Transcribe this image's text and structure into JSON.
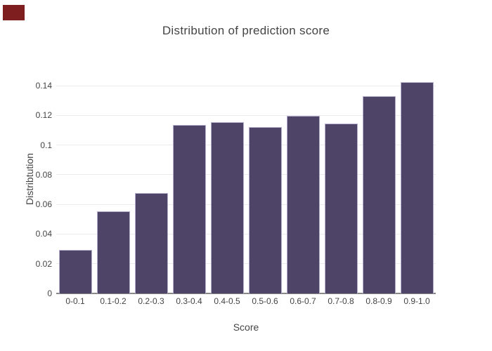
{
  "red_marker": {
    "color": "#7e1e1e"
  },
  "chart_data": {
    "type": "bar",
    "title": "Distribution of prediction score",
    "xlabel": "Score",
    "ylabel": "Distribtution",
    "categories": [
      "0-0.1",
      "0.1-0.2",
      "0.2-0.3",
      "0.3-0.4",
      "0.4-0.5",
      "0.5-0.6",
      "0.6-0.7",
      "0.7-0.8",
      "0.8-0.9",
      "0.9-1.0"
    ],
    "values": [
      0.0295,
      0.0555,
      0.0675,
      0.1135,
      0.1155,
      0.112,
      0.1195,
      0.1145,
      0.133,
      0.1425
    ],
    "yticks": [
      0,
      0.02,
      0.04,
      0.06,
      0.08,
      0.1,
      0.12,
      0.14
    ],
    "ytick_labels": [
      "0",
      "0.02",
      "0.04",
      "0.06",
      "0.08",
      "0.1",
      "0.12",
      "0.14"
    ],
    "ylim": [
      0,
      0.15
    ],
    "grid": true,
    "legend": "none",
    "bar_color": "#4e4468",
    "bar_border_color": "#b5aecd",
    "gridline_color": "#ebebeb",
    "axis_line_color": "#888888",
    "text_color": "#444444"
  }
}
